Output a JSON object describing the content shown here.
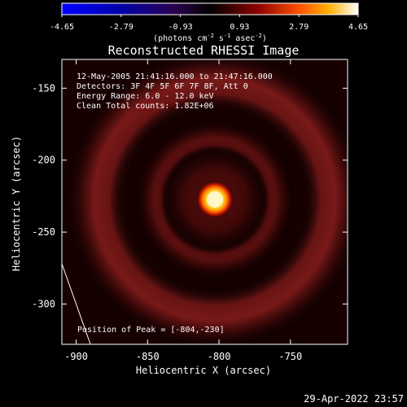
{
  "title": "Reconstructed RHESSI Image",
  "colorbar": {
    "ticks": [
      "-4.65",
      "-2.79",
      "-0.93",
      "0.93",
      "2.79",
      "4.65"
    ],
    "units_main": "(photons cm",
    "units_exp1": "-2",
    "units_mid": " s",
    "units_exp2": "-1",
    "units_mid2": " asec",
    "units_exp3": "-2",
    "units_end": ")"
  },
  "info": {
    "line1": "12-May-2005 21:41:16.000 to 21:47:16.000",
    "line2": "Detectors: 3F 4F 5F 6F 7F 8F, Att 0",
    "line3": "Energy Range: 6.0 - 12.0 keV",
    "line4": "Clean    Total counts: 1.82E+06"
  },
  "peak_text": "Position of Peak = [-804,-230]",
  "xlabel": "Heliocentric X (arcsec)",
  "ylabel": "Heliocentric Y (arcsec)",
  "footer_timestamp": "29-Apr-2022 23:57",
  "chart_data": {
    "type": "heatmap",
    "title": "Reconstructed RHESSI Image",
    "xlabel": "Heliocentric X (arcsec)",
    "ylabel": "Heliocentric Y (arcsec)",
    "xlim": [
      -910,
      -710
    ],
    "ylim": [
      -328,
      -130
    ],
    "x_ticks": [
      -900,
      -850,
      -800,
      -750
    ],
    "x_tick_labels": [
      "-900",
      "-850",
      "-800",
      "-750"
    ],
    "y_ticks": [
      -150,
      -200,
      -250,
      -300
    ],
    "y_tick_labels": [
      "-150",
      "-200",
      "-250",
      "-300"
    ],
    "colorbar_range": [
      -4.65,
      4.65
    ],
    "peak": {
      "x": -804,
      "y": -230
    },
    "limb_line": [
      [
        -910,
        -272
      ],
      [
        -890,
        -328
      ]
    ],
    "colormap": "red-temperature",
    "colors": {
      "background": "#000000",
      "text": "#ffffff",
      "axis": "#ffffff"
    }
  }
}
